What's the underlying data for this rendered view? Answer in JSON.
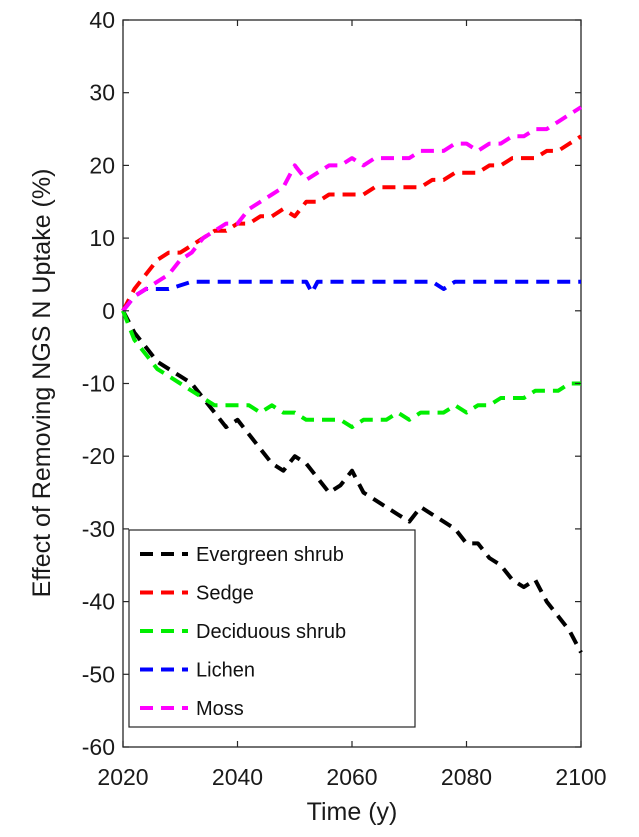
{
  "chart_data": {
    "type": "line",
    "title": "",
    "xlabel": "Time (y)",
    "ylabel": "Effect of Removing NGS N Uptake (%)",
    "xlim": [
      2020,
      2100
    ],
    "ylim": [
      -60,
      40
    ],
    "x_ticks": [
      "2020",
      "2040",
      "2060",
      "2080",
      "2100"
    ],
    "y_ticks": [
      "40",
      "30",
      "20",
      "10",
      "0",
      "-10",
      "-20",
      "-30",
      "-40",
      "-50",
      "-60"
    ],
    "grid": false,
    "legend_position": "bottom-left",
    "line_style": "dashed",
    "series": [
      {
        "name": "Evergreen shrub",
        "color": "#000000",
        "x": [
          2020,
          2022,
          2024,
          2026,
          2028,
          2030,
          2032,
          2034,
          2036,
          2038,
          2040,
          2042,
          2044,
          2046,
          2048,
          2050,
          2052,
          2054,
          2056,
          2058,
          2060,
          2062,
          2064,
          2066,
          2068,
          2070,
          2072,
          2074,
          2076,
          2078,
          2080,
          2082,
          2084,
          2086,
          2088,
          2090,
          2092,
          2094,
          2096,
          2098,
          2100
        ],
        "y": [
          0,
          -3,
          -5,
          -7,
          -8,
          -9,
          -10,
          -12,
          -14,
          -16,
          -15,
          -17,
          -19,
          -21,
          -22,
          -20,
          -21,
          -23,
          -25,
          -24,
          -22,
          -25,
          -26,
          -27,
          -28,
          -29,
          -27,
          -28,
          -29,
          -30,
          -32,
          -32,
          -34,
          -35,
          -37,
          -38,
          -37,
          -40,
          -42,
          -44,
          -47
        ]
      },
      {
        "name": "Sedge",
        "color": "#ff0000",
        "x": [
          2020,
          2022,
          2024,
          2026,
          2028,
          2030,
          2032,
          2034,
          2036,
          2038,
          2040,
          2042,
          2044,
          2046,
          2048,
          2050,
          2052,
          2054,
          2056,
          2058,
          2060,
          2062,
          2064,
          2066,
          2068,
          2070,
          2072,
          2074,
          2076,
          2078,
          2080,
          2082,
          2084,
          2086,
          2088,
          2090,
          2092,
          2094,
          2096,
          2098,
          2100
        ],
        "y": [
          0,
          3,
          5,
          7,
          8,
          8,
          9,
          10,
          11,
          11,
          12,
          12,
          13,
          13,
          14,
          13,
          15,
          15,
          16,
          16,
          16,
          16,
          17,
          17,
          17,
          17,
          17,
          18,
          18,
          19,
          19,
          19,
          20,
          20,
          21,
          21,
          21,
          22,
          22,
          23,
          24
        ]
      },
      {
        "name": "Deciduous shrub",
        "color": "#00ee00",
        "x": [
          2020,
          2022,
          2024,
          2026,
          2028,
          2030,
          2032,
          2034,
          2036,
          2038,
          2040,
          2042,
          2044,
          2046,
          2048,
          2050,
          2052,
          2054,
          2056,
          2058,
          2060,
          2062,
          2064,
          2066,
          2068,
          2070,
          2072,
          2074,
          2076,
          2078,
          2080,
          2082,
          2084,
          2086,
          2088,
          2090,
          2092,
          2094,
          2096,
          2098,
          2100
        ],
        "y": [
          0,
          -4,
          -6,
          -8,
          -9,
          -10,
          -11,
          -12,
          -13,
          -13,
          -13,
          -13,
          -14,
          -13,
          -14,
          -14,
          -15,
          -15,
          -15,
          -15,
          -16,
          -15,
          -15,
          -15,
          -14,
          -15,
          -14,
          -14,
          -14,
          -13,
          -14,
          -13,
          -13,
          -12,
          -12,
          -12,
          -11,
          -11,
          -11,
          -10,
          -10
        ]
      },
      {
        "name": "Lichen",
        "color": "#0000ff",
        "x": [
          2020,
          2022,
          2024,
          2026,
          2028,
          2030,
          2032,
          2034,
          2036,
          2038,
          2040,
          2042,
          2044,
          2046,
          2048,
          2050,
          2052,
          2053,
          2054,
          2056,
          2058,
          2060,
          2062,
          2064,
          2066,
          2068,
          2070,
          2072,
          2074,
          2076,
          2078,
          2080,
          2082,
          2084,
          2086,
          2088,
          2090,
          2092,
          2094,
          2096,
          2098,
          2100
        ],
        "y": [
          0,
          2,
          3,
          3,
          3,
          3.5,
          4,
          4,
          4,
          4,
          4,
          4,
          4,
          4,
          4,
          4,
          4,
          2.5,
          4,
          4,
          4,
          4,
          4,
          4,
          4,
          4,
          4,
          4,
          4,
          3,
          4,
          4,
          4,
          4,
          4,
          4,
          4,
          4,
          4,
          4,
          4,
          4
        ]
      },
      {
        "name": "Moss",
        "color": "#ff00ff",
        "x": [
          2020,
          2022,
          2024,
          2026,
          2028,
          2030,
          2032,
          2034,
          2036,
          2038,
          2040,
          2042,
          2044,
          2046,
          2048,
          2050,
          2052,
          2054,
          2056,
          2058,
          2060,
          2062,
          2064,
          2066,
          2068,
          2070,
          2072,
          2074,
          2076,
          2078,
          2080,
          2082,
          2084,
          2086,
          2088,
          2090,
          2092,
          2094,
          2096,
          2098,
          2100
        ],
        "y": [
          0,
          2,
          3,
          4,
          5,
          7,
          8,
          10,
          11,
          12,
          12,
          14,
          15,
          16,
          17,
          20,
          18,
          19,
          20,
          20,
          21,
          20,
          21,
          21,
          21,
          21,
          22,
          22,
          22,
          23,
          23,
          22,
          23,
          23,
          24,
          24,
          25,
          25,
          26,
          27,
          28
        ]
      }
    ]
  }
}
